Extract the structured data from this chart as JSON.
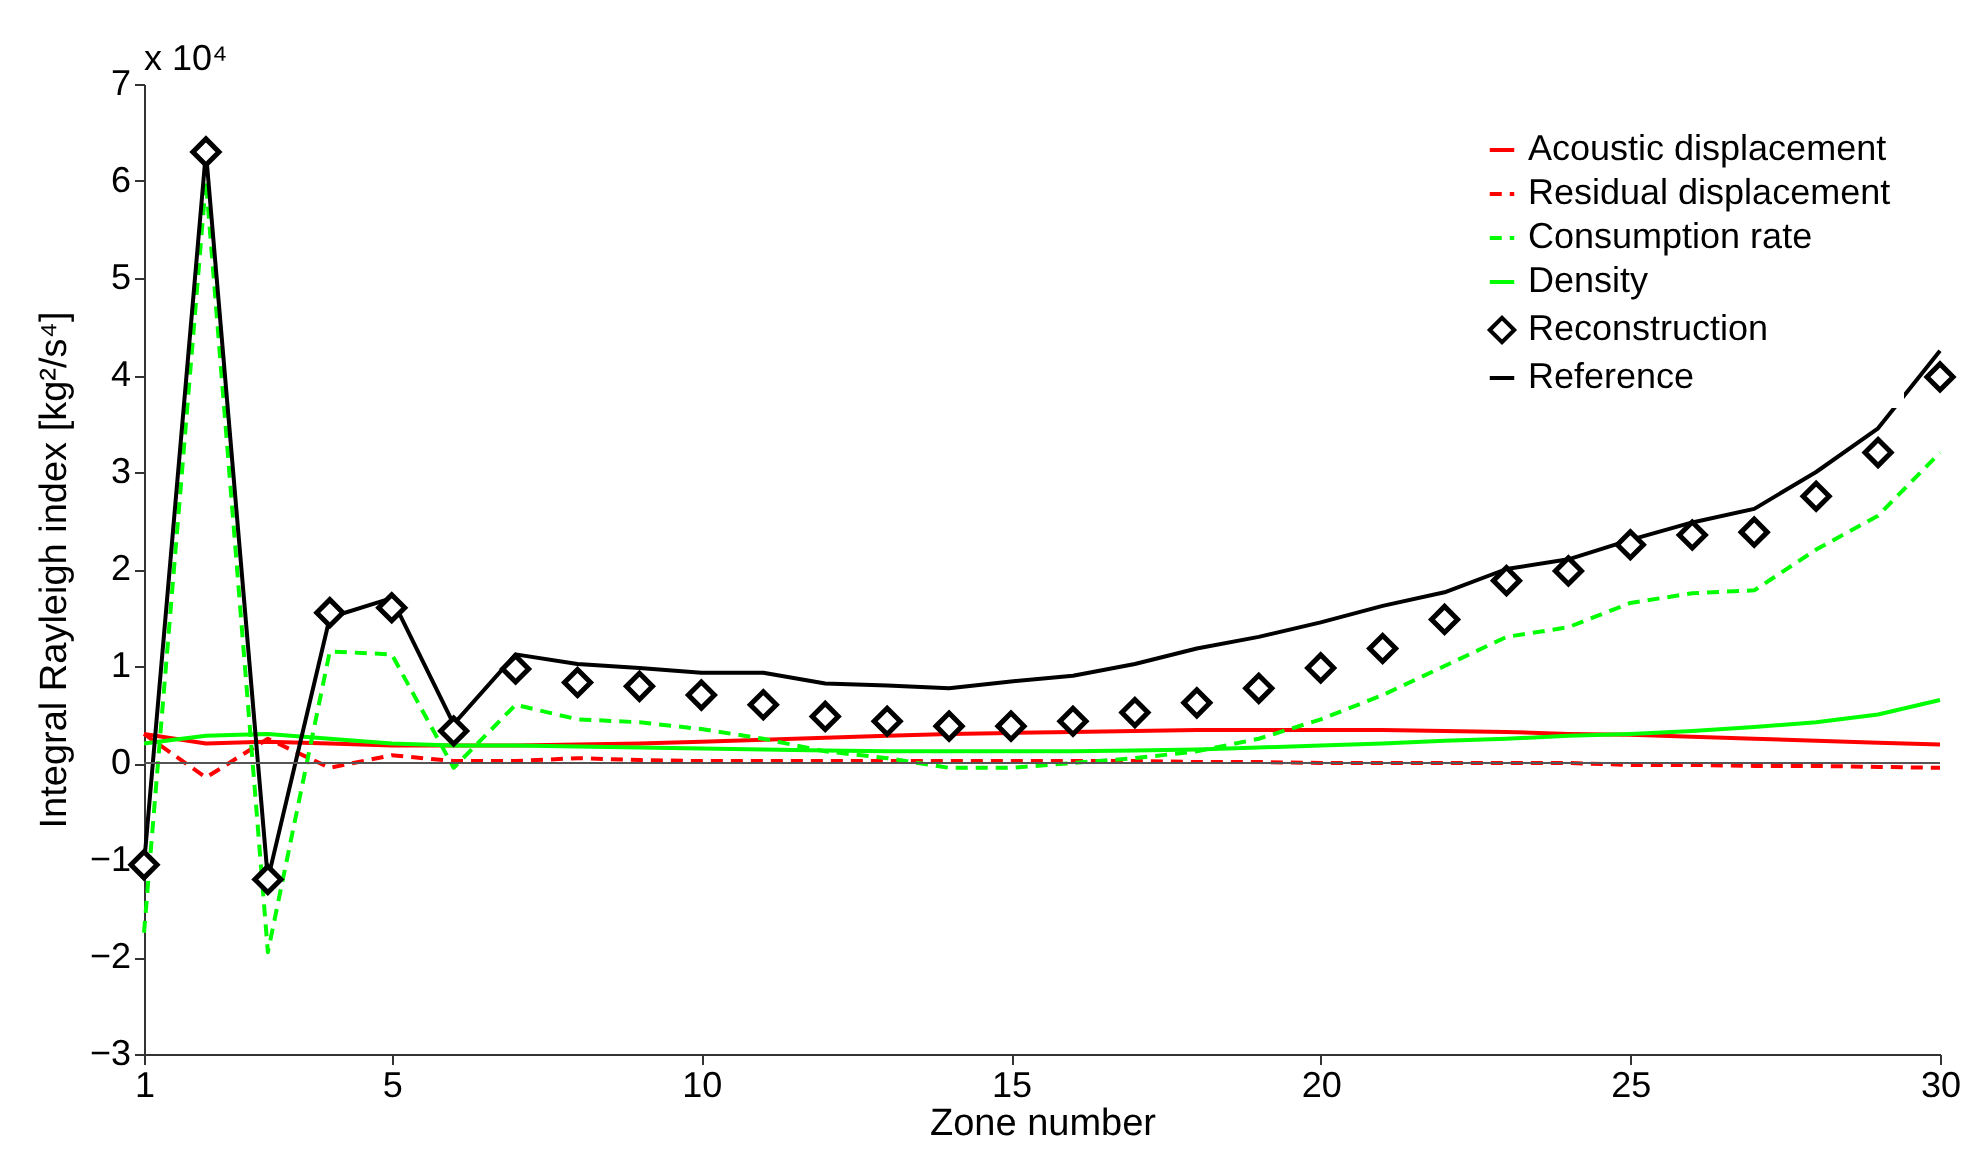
{
  "chart_data": {
    "type": "line",
    "xlabel": "Zone number",
    "ylabel": "Integral Rayleigh index [kg²/s⁴]",
    "annotations": [
      "x 10⁴"
    ],
    "x": [
      1,
      2,
      3,
      4,
      5,
      6,
      7,
      8,
      9,
      10,
      11,
      12,
      13,
      14,
      15,
      16,
      17,
      18,
      19,
      20,
      21,
      22,
      23,
      24,
      25,
      26,
      27,
      28,
      29,
      30
    ],
    "xlim": [
      1,
      30
    ],
    "xticks": [
      1,
      5,
      10,
      15,
      20,
      25,
      30
    ],
    "ylim": [
      -3,
      7
    ],
    "yticks": [
      -3,
      -2,
      -1,
      0,
      1,
      2,
      3,
      4,
      5,
      6,
      7
    ],
    "grid": false,
    "legend": "top right",
    "ref_lines": [
      {
        "axis": "y",
        "value": 0,
        "color": "#555555"
      }
    ],
    "series": [
      {
        "name": "Acoustic displacement",
        "color": "#ff0000",
        "line_style": "solid",
        "values": [
          0.3,
          0.2,
          0.22,
          0.2,
          0.18,
          0.18,
          0.18,
          0.19,
          0.2,
          0.22,
          0.24,
          0.26,
          0.28,
          0.3,
          0.31,
          0.32,
          0.33,
          0.34,
          0.34,
          0.34,
          0.34,
          0.33,
          0.32,
          0.3,
          0.29,
          0.27,
          0.25,
          0.23,
          0.21,
          0.19
        ]
      },
      {
        "name": "Residual displacement",
        "color": "#ff0000",
        "line_style": "dashed",
        "values": [
          0.3,
          -0.15,
          0.25,
          -0.05,
          0.08,
          0.02,
          0.02,
          0.05,
          0.03,
          0.02,
          0.02,
          0.02,
          0.02,
          0.02,
          0.02,
          0.02,
          0.02,
          0.01,
          0.01,
          0,
          0,
          0,
          0,
          0,
          -0.02,
          -0.02,
          -0.03,
          -0.03,
          -0.04,
          -0.05
        ]
      },
      {
        "name": "Consumption rate",
        "color": "#00ff00",
        "line_style": "dashed",
        "values": [
          -1.75,
          6.0,
          -1.95,
          1.15,
          1.12,
          -0.05,
          0.6,
          0.45,
          0.42,
          0.35,
          0.25,
          0.12,
          0.05,
          -0.05,
          -0.05,
          0.0,
          0.05,
          0.12,
          0.25,
          0.45,
          0.7,
          1.0,
          1.3,
          1.4,
          1.65,
          1.75,
          1.78,
          2.2,
          2.55,
          3.2
        ]
      },
      {
        "name": "Density",
        "color": "#00ff00",
        "line_style": "solid",
        "values": [
          0.2,
          0.28,
          0.3,
          0.25,
          0.2,
          0.18,
          0.18,
          0.17,
          0.16,
          0.15,
          0.14,
          0.13,
          0.12,
          0.12,
          0.12,
          0.12,
          0.13,
          0.14,
          0.16,
          0.18,
          0.2,
          0.23,
          0.25,
          0.28,
          0.3,
          0.33,
          0.37,
          0.42,
          0.5,
          0.65
        ]
      },
      {
        "name": "Reconstruction",
        "type": "scatter",
        "marker": "diamond",
        "color": "#000000",
        "values": [
          -1.05,
          6.3,
          -1.2,
          1.55,
          1.6,
          0.33,
          0.97,
          0.83,
          0.79,
          0.7,
          0.6,
          0.48,
          0.43,
          0.38,
          0.38,
          0.43,
          0.52,
          0.62,
          0.77,
          0.98,
          1.18,
          1.48,
          1.88,
          1.98,
          2.25,
          2.35,
          2.38,
          2.75,
          3.2,
          3.98
        ]
      },
      {
        "name": "Reference",
        "color": "#000000",
        "line_style": "solid",
        "values": [
          -1.05,
          6.3,
          -1.2,
          1.5,
          1.7,
          0.4,
          1.12,
          1.02,
          0.98,
          0.93,
          0.93,
          0.82,
          0.8,
          0.77,
          0.84,
          0.9,
          1.02,
          1.18,
          1.3,
          1.45,
          1.62,
          1.76,
          2.0,
          2.1,
          2.3,
          2.48,
          2.62,
          3.0,
          3.45,
          4.25
        ]
      }
    ]
  }
}
